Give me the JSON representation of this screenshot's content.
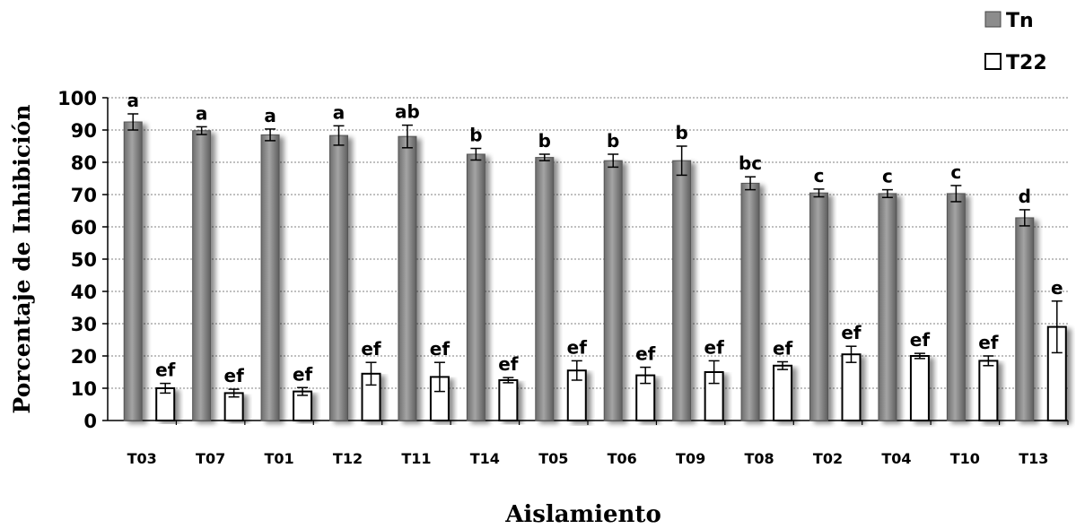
{
  "chart_data": {
    "type": "bar",
    "title": "",
    "xlabel": "Aislamiento",
    "ylabel": "Porcentaje de Inhibición",
    "ylim": [
      0,
      100
    ],
    "yticks": [
      "0",
      "10",
      "20",
      "30",
      "40",
      "50",
      "60",
      "70",
      "80",
      "90",
      "100"
    ],
    "grid": true,
    "legend_position": "top-right",
    "categories": [
      "T03",
      "T07",
      "T01",
      "T12",
      "T11",
      "T14",
      "T05",
      "T06",
      "T09",
      "T08",
      "T02",
      "T04",
      "T10",
      "T13"
    ],
    "series": [
      {
        "name": "Tn",
        "color": "#8c8c8c",
        "values": [
          92.5,
          89.8,
          88.5,
          88.3,
          88.0,
          82.5,
          81.5,
          80.5,
          80.5,
          73.5,
          70.5,
          70.3,
          70.3,
          62.8
        ],
        "errors": [
          2.5,
          1.2,
          1.8,
          3.0,
          3.5,
          1.8,
          1.0,
          2.0,
          4.5,
          2.0,
          1.2,
          1.2,
          2.5,
          2.5
        ],
        "labels": [
          "a",
          "a",
          "a",
          "a",
          "ab",
          "b",
          "b",
          "b",
          "b",
          "bc",
          "c",
          "c",
          "c",
          "d"
        ]
      },
      {
        "name": "T22",
        "color": "#ffffff",
        "values": [
          10.0,
          8.5,
          9.0,
          14.5,
          13.5,
          12.5,
          15.5,
          14.0,
          15.0,
          17.0,
          20.5,
          20.0,
          18.5,
          29.0
        ],
        "errors": [
          1.5,
          1.2,
          1.2,
          3.5,
          4.5,
          0.8,
          3.0,
          2.5,
          3.5,
          1.2,
          2.5,
          0.8,
          1.5,
          8.0
        ],
        "labels": [
          "ef",
          "ef",
          "ef",
          "ef",
          "ef",
          "ef",
          "ef",
          "ef",
          "ef",
          "ef",
          "ef",
          "ef",
          "ef",
          "e"
        ]
      }
    ]
  }
}
